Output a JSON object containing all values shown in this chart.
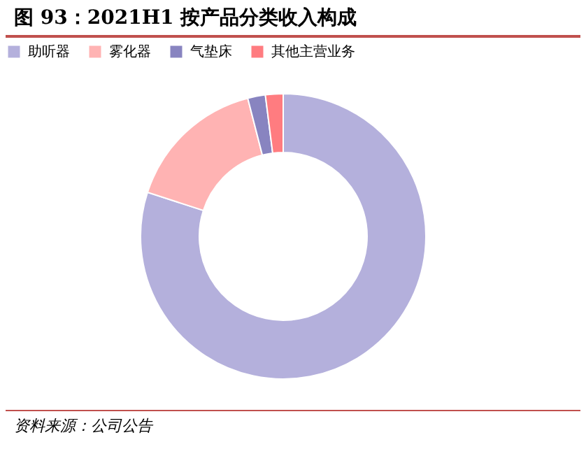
{
  "chart_data": {
    "type": "donut",
    "title": "图 93：2021H1 按产品分类收入构成",
    "categories": [
      "助听器",
      "雾化器",
      "气垫床",
      "其他主营业务"
    ],
    "values": [
      80,
      16,
      2,
      2
    ],
    "colors": [
      "#b4b0dc",
      "#ffb3b3",
      "#8884c0",
      "#ff7c80"
    ],
    "legend": "top",
    "annotations": [
      "资料来源：公司公告"
    ]
  }
}
